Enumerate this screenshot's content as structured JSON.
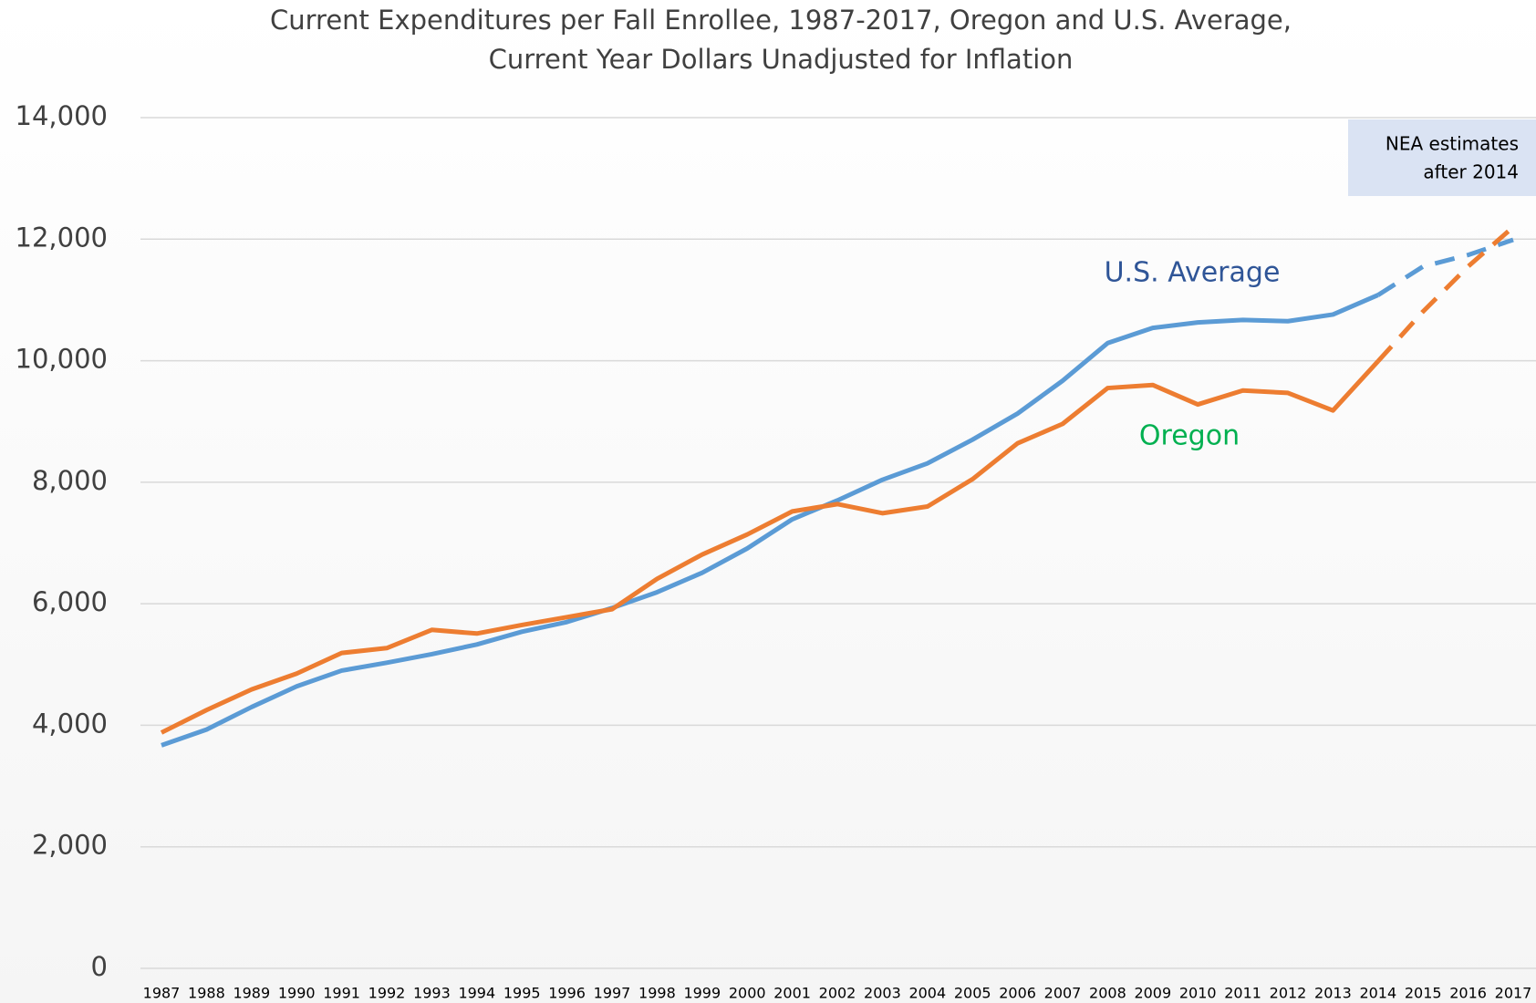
{
  "chart_data": {
    "type": "line",
    "title": "Current Expenditures per Fall Enrollee, 1987-2017, Oregon and U.S. Average,",
    "subtitle": "Current Year Dollars Unadjusted for Inflation",
    "annotation": [
      "NEA estimates",
      "after 2014"
    ],
    "categories": [
      "1987",
      "1988",
      "1989",
      "1990",
      "1991",
      "1992",
      "1993",
      "1994",
      "1995",
      "1996",
      "1997",
      "1998",
      "1999",
      "2000",
      "2001",
      "2002",
      "2003",
      "2004",
      "2005",
      "2006",
      "2007",
      "2008",
      "2009",
      "2010",
      "2011",
      "2012",
      "2013",
      "2014",
      "2015",
      "2016",
      "2017"
    ],
    "series": [
      {
        "name": "U.S. Average",
        "color": "#5b9bd5",
        "label_color": "#2f5597",
        "values": [
          3670,
          3930,
          4300,
          4640,
          4900,
          5030,
          5170,
          5330,
          5540,
          5700,
          5930,
          6190,
          6510,
          6910,
          7390,
          7700,
          8040,
          8310,
          8700,
          9130,
          9670,
          10290,
          10540,
          10630,
          10670,
          10650,
          10760,
          11080,
          11550,
          11740,
          11990
        ]
      },
      {
        "name": "Oregon",
        "color": "#ed7d31",
        "label_color": "#00b050",
        "values": [
          3880,
          4250,
          4590,
          4850,
          5190,
          5270,
          5570,
          5510,
          5650,
          5780,
          5910,
          6410,
          6810,
          7140,
          7520,
          7640,
          7490,
          7600,
          8050,
          8640,
          8960,
          9550,
          9600,
          9280,
          9510,
          9470,
          9180,
          9990,
          10810,
          11550,
          12200
        ]
      }
    ],
    "dashed_after": 2014,
    "ylim": [
      0,
      14000
    ],
    "yticks": [
      0,
      {
        "value": 2000,
        "label": "2,000"
      },
      {
        "value": 4000,
        "label": "4,000"
      },
      {
        "value": 6000,
        "label": "6,000"
      },
      {
        "value": 8000,
        "label": "8,000"
      },
      {
        "value": 10000,
        "label": "10,000"
      },
      {
        "value": 12000,
        "label": "12,000"
      },
      {
        "value": 14000,
        "label": "14,000"
      }
    ],
    "grid": true
  }
}
